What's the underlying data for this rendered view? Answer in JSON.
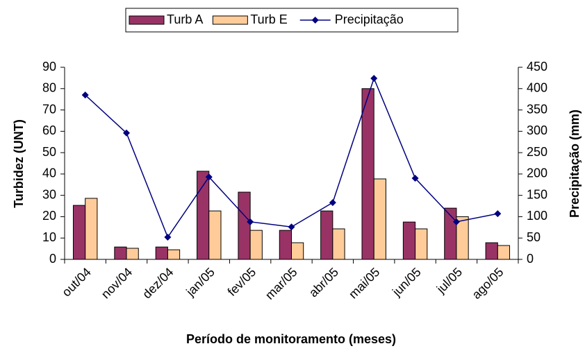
{
  "chart_data": {
    "type": "bar",
    "categories": [
      "out/04",
      "nov/04",
      "dez/04",
      "jan/05",
      "fev/05",
      "mar/05",
      "abr/05",
      "mai/05",
      "jun/05",
      "jul/05",
      "ago/05"
    ],
    "series": [
      {
        "name": "Turb A",
        "color": "#993366",
        "values": [
          25.3,
          5.8,
          5.8,
          41.3,
          31.5,
          13.6,
          22.7,
          80,
          17.5,
          24,
          7.8
        ]
      },
      {
        "name": "Turb E",
        "color": "#ffcc99",
        "values": [
          28.6,
          5.2,
          4.5,
          22.7,
          13.6,
          7.8,
          14.3,
          37.7,
          14.3,
          20,
          6.5
        ]
      },
      {
        "name": "Precipitação",
        "color": "#000080",
        "type": "line",
        "axis": "y2",
        "values": [
          385,
          296,
          52,
          193,
          88,
          76,
          133,
          424,
          190,
          88,
          107
        ]
      }
    ],
    "x_label": "Período de monitoramento (meses)",
    "y_label": "Turbidez (UNT)",
    "y2_label": "Precipitação (mm)",
    "ylim": [
      0,
      90
    ],
    "yticks": [
      0,
      10,
      20,
      30,
      40,
      50,
      60,
      70,
      80,
      90
    ],
    "y2lim": [
      0,
      450
    ],
    "y2ticks": [
      0,
      50,
      100,
      150,
      200,
      250,
      300,
      350,
      400,
      450
    ],
    "grid": false,
    "legend": "top"
  }
}
